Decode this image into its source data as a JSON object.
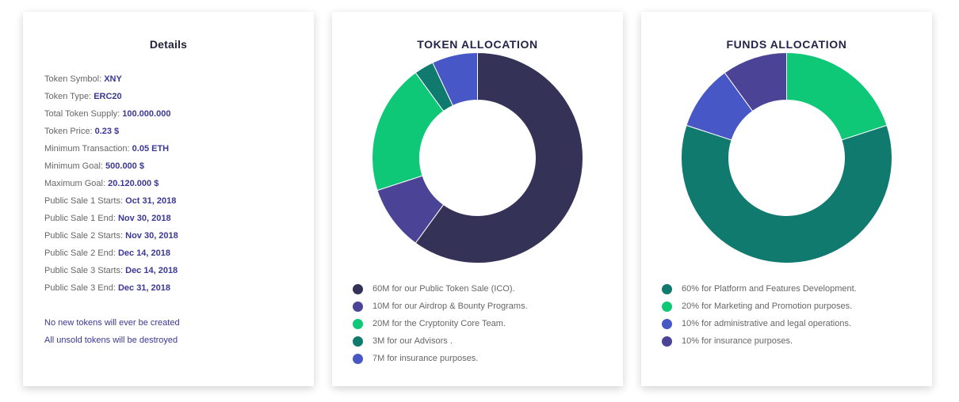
{
  "details": {
    "title": "Details",
    "rows": [
      {
        "label": "Token Symbol:",
        "value": "XNY"
      },
      {
        "label": "Token Type:",
        "value": "ERC20"
      },
      {
        "label": "Total Token Supply:",
        "value": "100.000.000"
      },
      {
        "label": "Token Price:",
        "value": "0.23 $"
      },
      {
        "label": "Minimum Transaction:",
        "value": "0.05 ETH"
      },
      {
        "label": "Minimum Goal:",
        "value": "500.000 $"
      },
      {
        "label": "Maximum Goal:",
        "value": "20.120.000 $"
      },
      {
        "label": "Public Sale 1 Starts:",
        "value": "Oct 31, 2018"
      },
      {
        "label": "Public Sale 1 End:",
        "value": "Nov 30, 2018"
      },
      {
        "label": "Public Sale 2 Starts:",
        "value": "Nov 30, 2018"
      },
      {
        "label": "Public Sale 2 End:",
        "value": "Dec 14, 2018"
      },
      {
        "label": "Public Sale 3 Starts:",
        "value": "Dec 14, 2018"
      },
      {
        "label": "Public Sale 3 End:",
        "value": "Dec 31, 2018"
      }
    ],
    "notes": [
      "No new tokens will ever be created",
      "All unsold tokens will be destroyed"
    ]
  },
  "chart_data": [
    {
      "type": "pie",
      "donut": true,
      "title": "TOKEN ALLOCATION",
      "slices": [
        {
          "label": "60M for our Public Token Sale (ICO).",
          "value": 60,
          "color": "#343256"
        },
        {
          "label": "10M for our Airdrop & Bounty Programs.",
          "value": 10,
          "color": "#4a4396"
        },
        {
          "label": "20M for the Cryptonity Core Team.",
          "value": 20,
          "color": "#0ec878"
        },
        {
          "label": "3M for our Advisors .",
          "value": 3,
          "color": "#117a6e"
        },
        {
          "label": "7M for insurance purposes.",
          "value": 7,
          "color": "#4758c6"
        }
      ],
      "legend_position": "bottom-left"
    },
    {
      "type": "pie",
      "donut": true,
      "title": "FUNDS ALLOCATION",
      "slices": [
        {
          "label": "60% for Platform and Features Development.",
          "value": 60,
          "color": "#117a6e"
        },
        {
          "label": "20% for Marketing and Promotion purposes.",
          "value": 20,
          "color": "#0ec878"
        },
        {
          "label": "10% for administrative and legal operations.",
          "value": 10,
          "color": "#4758c6"
        },
        {
          "label": "10% for insurance purposes.",
          "value": 10,
          "color": "#4a4396"
        }
      ],
      "slice_draw_order": [
        1,
        0,
        2,
        3
      ],
      "legend_position": "bottom-left"
    }
  ]
}
